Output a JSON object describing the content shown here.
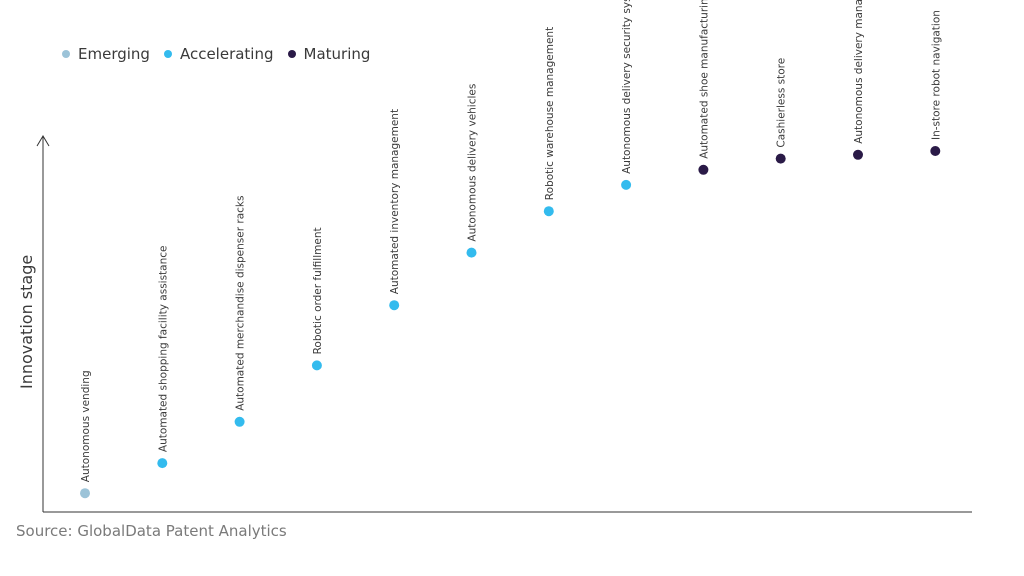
{
  "legend": [
    {
      "label": "Emerging",
      "color": "#9cc3d8"
    },
    {
      "label": "Accelerating",
      "color": "#33bbee"
    },
    {
      "label": "Maturing",
      "color": "#2a1a47"
    }
  ],
  "source": "Source: GlobalData Patent Analytics",
  "chart_data": {
    "type": "scatter",
    "ylabel": "Innovation stage",
    "xlabel": "",
    "grid": false,
    "legend_position": "top-left",
    "ylim": [
      0,
      100
    ],
    "points": [
      {
        "label": "Autonomous vending",
        "stage": "Emerging",
        "y": 5
      },
      {
        "label": "Automated shopping facility assistance",
        "stage": "Accelerating",
        "y": 13
      },
      {
        "label": "Automated merchandise dispenser racks",
        "stage": "Accelerating",
        "y": 24
      },
      {
        "label": "Robotic order fulfillment",
        "stage": "Accelerating",
        "y": 39
      },
      {
        "label": "Automated inventory management",
        "stage": "Accelerating",
        "y": 55
      },
      {
        "label": "Autonomous delivery vehicles",
        "stage": "Accelerating",
        "y": 69
      },
      {
        "label": "Robotic warehouse management",
        "stage": "Accelerating",
        "y": 80
      },
      {
        "label": "Autonomous delivery security systems",
        "stage": "Accelerating",
        "y": 87
      },
      {
        "label": "Automated shoe manufacturing",
        "stage": "Maturing",
        "y": 91
      },
      {
        "label": "Cashierless store",
        "stage": "Maturing",
        "y": 94
      },
      {
        "label": "Autonomous delivery management",
        "stage": "Maturing",
        "y": 95
      },
      {
        "label": "In-store robot navigation",
        "stage": "Maturing",
        "y": 96
      }
    ]
  }
}
